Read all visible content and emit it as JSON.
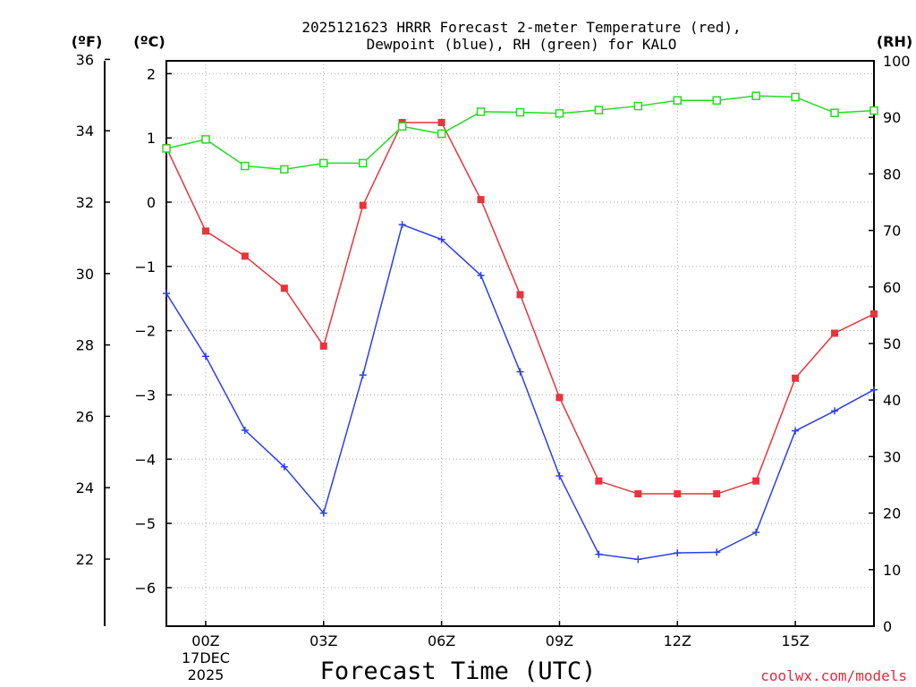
{
  "chart_data": {
    "type": "line",
    "title_lines": [
      "2025121623 HRRR Forecast 2-meter Temperature (red),",
      "Dewpoint (blue), RH (green) for KALO"
    ],
    "xlabel": "Forecast Time (UTC)",
    "credit": "coolwx.com/models",
    "units": {
      "fahrenheit": "(ºF)",
      "celsius": "(ºC)",
      "rh": "(RH)"
    },
    "x": [
      -1,
      0,
      1,
      2,
      3,
      4,
      5,
      6,
      7,
      8,
      9,
      10,
      11,
      12,
      13,
      14,
      15,
      16,
      17
    ],
    "xlim": [
      -1,
      17
    ],
    "x_ticks": [
      {
        "x": 0,
        "lines": [
          "00Z",
          "17DEC",
          "2025"
        ]
      },
      {
        "x": 3,
        "lines": [
          "03Z"
        ]
      },
      {
        "x": 6,
        "lines": [
          "06Z"
        ]
      },
      {
        "x": 9,
        "lines": [
          "09Z"
        ]
      },
      {
        "x": 12,
        "lines": [
          "12Z"
        ]
      },
      {
        "x": 15,
        "lines": [
          "15Z"
        ]
      }
    ],
    "ylim_c": [
      -6.6,
      2.2
    ],
    "y_ticks_c": [
      2,
      1,
      0,
      -1,
      -2,
      -3,
      -4,
      -5,
      -6
    ],
    "y_ticks_f": [
      36,
      34,
      32,
      30,
      28,
      26,
      24,
      22
    ],
    "ylim_rh": [
      0,
      100
    ],
    "y_ticks_rh": [
      0,
      10,
      20,
      30,
      40,
      50,
      60,
      70,
      80,
      90,
      100
    ],
    "grid": true,
    "series": [
      {
        "name": "2-meter Temperature (°C)",
        "color": "#e8343c",
        "marker": "square-filled",
        "axis": "c",
        "values": [
          0.85,
          -0.45,
          -0.84,
          -1.34,
          -2.24,
          -0.05,
          1.24,
          1.24,
          0.04,
          -1.44,
          -3.04,
          -4.34,
          -4.54,
          -4.54,
          -4.54,
          -4.34,
          -2.74,
          -2.04,
          -1.74
        ]
      },
      {
        "name": "Dewpoint (°C)",
        "color": "#2a3ef0",
        "marker": "plus",
        "axis": "c",
        "values": [
          -1.42,
          -2.4,
          -3.55,
          -4.12,
          -4.84,
          -2.69,
          -0.35,
          -0.58,
          -1.14,
          -2.64,
          -4.26,
          -5.48,
          -5.56,
          -5.46,
          -5.45,
          -5.14,
          -3.56,
          -3.25,
          -2.92
        ]
      },
      {
        "name": "RH (%)",
        "color": "#22dd22",
        "marker": "square-open",
        "axis": "rh",
        "values": [
          84.5,
          86.1,
          81.4,
          80.8,
          81.9,
          81.9,
          88.4,
          87.1,
          91.0,
          90.9,
          90.7,
          91.3,
          92.0,
          93.0,
          93.0,
          93.8,
          93.6,
          90.8,
          91.2
        ]
      }
    ]
  }
}
